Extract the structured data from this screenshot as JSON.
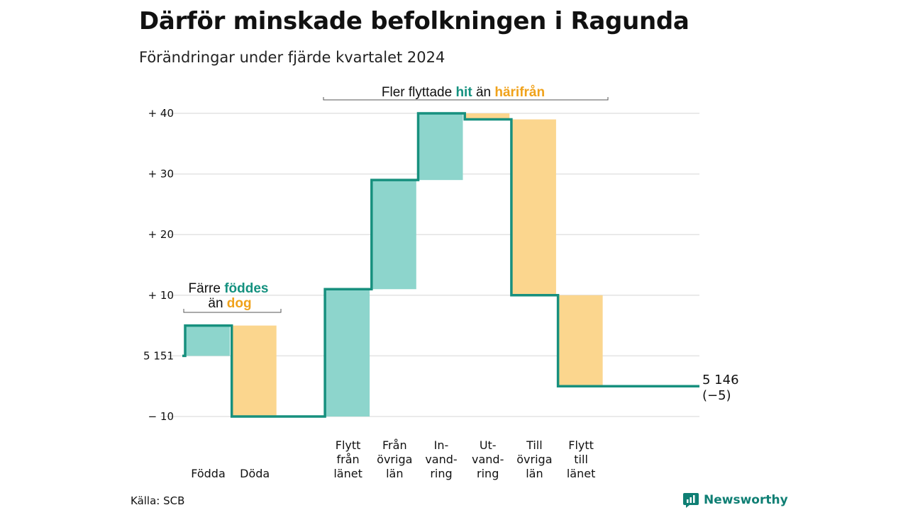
{
  "title": "Därför minskade befolkningen i Ragunda",
  "subtitle": "Förändringar under fjärde kvartalet 2024",
  "source": "Källa: SCB",
  "brand": "Newsworthy",
  "colors": {
    "increase": "#8dd5cc",
    "decrease": "#fbd68e",
    "line": "#17907e",
    "grid": "#e3e3e3"
  },
  "annotations": {
    "births": {
      "line1_a": "Färre",
      "line1_b": "föddes",
      "line2_a": "än",
      "line2_b": "dog"
    },
    "moves": {
      "a": "Fler flyttade",
      "b": "hit",
      "c": "än",
      "d": "härifrån"
    }
  },
  "chart_data": {
    "type": "waterfall",
    "start_value": 5151,
    "end_label_1": "5 146",
    "end_label_2": "(−5)",
    "y_ticks": [
      {
        "value": 40,
        "label": "+ 40"
      },
      {
        "value": 30,
        "label": "+ 30"
      },
      {
        "value": 20,
        "label": "+ 20"
      },
      {
        "value": 10,
        "label": "+ 10"
      },
      {
        "value": 0,
        "label": "5 151"
      },
      {
        "value": -10,
        "label": "− 10"
      }
    ],
    "ylim": [
      -10,
      40
    ],
    "steps": [
      {
        "label": [
          "",
          "",
          "Födda"
        ],
        "change": 5
      },
      {
        "label": [
          "",
          "",
          "Döda"
        ],
        "change": -15
      },
      {
        "label": [
          "",
          "",
          ""
        ],
        "change": 0
      },
      {
        "label": [
          "Flytt",
          "från",
          "länet"
        ],
        "change": 21
      },
      {
        "label": [
          "Från",
          "övriga",
          "län"
        ],
        "change": 18
      },
      {
        "label": [
          "In-",
          "vand-",
          "ring"
        ],
        "change": 11
      },
      {
        "label": [
          "Ut-",
          "vand-",
          "ring"
        ],
        "change": -1
      },
      {
        "label": [
          "Till",
          "övriga",
          "län"
        ],
        "change": -29
      },
      {
        "label": [
          "Flytt",
          "till",
          "länet"
        ],
        "change": -15
      }
    ]
  }
}
